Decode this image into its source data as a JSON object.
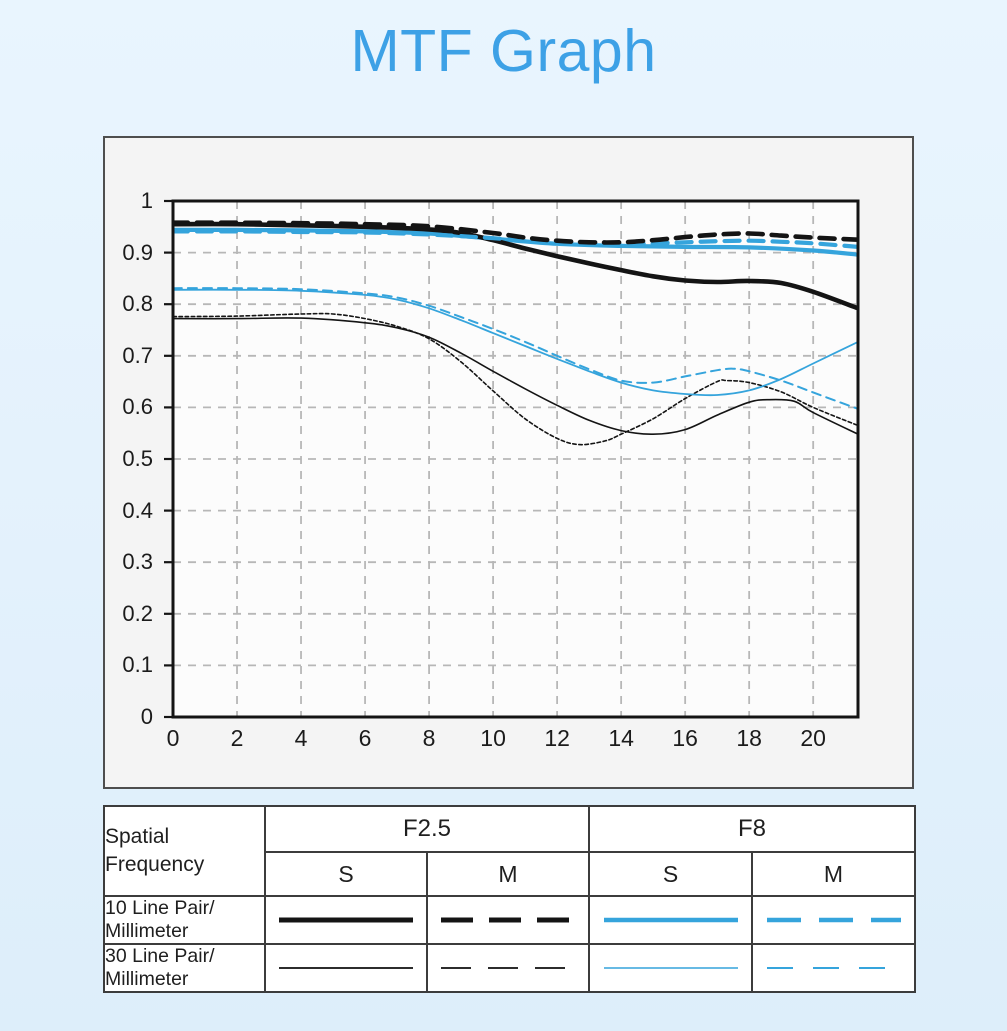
{
  "title": "MTF Graph",
  "colors": {
    "title_blue": "#3da1e6",
    "curve_blue": "#35a4dc",
    "curve_black": "#141414",
    "background": "#e3f1fc",
    "panel_bg": "#f4f4f4",
    "plot_bg": "#fcfcfc",
    "grid_gray": "#b7b7b7",
    "border_dark": "#3c3c3c"
  },
  "chart_data": {
    "type": "line",
    "title": "MTF Graph",
    "xlabel": "",
    "ylabel": "",
    "xlim": [
      0,
      21.4
    ],
    "ylim": [
      0,
      1
    ],
    "grid": "dashed",
    "x_ticks": [
      0,
      2,
      4,
      6,
      8,
      10,
      12,
      14,
      16,
      18,
      20
    ],
    "x_tick_labels": [
      "0",
      "2",
      "4",
      "6",
      "8",
      "10",
      "12",
      "14",
      "16",
      "18",
      "20"
    ],
    "y_ticks": [
      0,
      0.1,
      0.2,
      0.3,
      0.4,
      0.5,
      0.6,
      0.7,
      0.8,
      0.9,
      1
    ],
    "y_tick_labels": [
      "0",
      "0.1",
      "0.2",
      "0.3",
      "0.4",
      "0.5",
      "0.6",
      "0.7",
      "0.8",
      "0.9",
      "1"
    ],
    "series": [
      {
        "id": "f2.5-s-30lp",
        "name": "F2.5 S 30 Line Pair/Millimeter",
        "color": "#141414",
        "width": 1.6,
        "dash": null,
        "x": [
          0,
          2,
          4,
          6,
          7,
          8,
          9,
          10,
          11,
          12,
          13,
          14,
          15,
          16,
          17,
          18,
          18.6,
          19.4,
          20,
          21.4
        ],
        "y": [
          0.772,
          0.772,
          0.773,
          0.764,
          0.754,
          0.736,
          0.705,
          0.67,
          0.636,
          0.604,
          0.575,
          0.555,
          0.548,
          0.557,
          0.585,
          0.61,
          0.615,
          0.612,
          0.59,
          0.548
        ]
      },
      {
        "id": "f2.5-m-30lp",
        "name": "F2.5 M 30 Line Pair/Millimeter",
        "color": "#141414",
        "width": 1.6,
        "dash": "3.5 2.6",
        "x": [
          0,
          2,
          4,
          5,
          6,
          7,
          8,
          9,
          10,
          11,
          12,
          12.7,
          13.5,
          14,
          15,
          16,
          17,
          17.3,
          18,
          19,
          20,
          21.4
        ],
        "y": [
          0.776,
          0.777,
          0.781,
          0.781,
          0.772,
          0.757,
          0.733,
          0.688,
          0.632,
          0.578,
          0.54,
          0.528,
          0.535,
          0.548,
          0.578,
          0.617,
          0.65,
          0.652,
          0.648,
          0.63,
          0.6,
          0.565
        ]
      },
      {
        "id": "f8-s-30lp",
        "name": "F8 S 30 Line Pair/Millimeter",
        "color": "#35a4dc",
        "width": 1.8,
        "dash": null,
        "x": [
          0,
          2,
          4,
          6,
          7,
          8,
          9,
          10,
          11,
          12,
          13,
          14,
          15,
          16,
          17,
          18,
          19,
          20,
          21.4
        ],
        "y": [
          0.828,
          0.828,
          0.826,
          0.818,
          0.809,
          0.792,
          0.769,
          0.744,
          0.719,
          0.694,
          0.67,
          0.648,
          0.633,
          0.626,
          0.624,
          0.633,
          0.655,
          0.685,
          0.727
        ]
      },
      {
        "id": "f8-m-30lp",
        "name": "F8 M 30 Line Pair/Millimeter",
        "color": "#35a4dc",
        "width": 2,
        "dash": "9 6",
        "x": [
          0,
          2,
          4,
          6,
          7,
          8,
          9,
          10,
          11,
          12,
          13,
          14,
          15,
          16,
          17,
          17.5,
          18,
          19,
          20,
          21.4
        ],
        "y": [
          0.831,
          0.831,
          0.829,
          0.821,
          0.813,
          0.797,
          0.775,
          0.752,
          0.727,
          0.7,
          0.674,
          0.652,
          0.648,
          0.66,
          0.672,
          0.675,
          0.67,
          0.652,
          0.629,
          0.597
        ]
      },
      {
        "id": "f8-s-10lp",
        "name": "F8 S 10 Line Pair/Millimeter",
        "color": "#35a4dc",
        "width": 4.2,
        "dash": null,
        "x": [
          0,
          2,
          4,
          6,
          8,
          10,
          12,
          14,
          16,
          18,
          20,
          21.4
        ],
        "y": [
          0.944,
          0.944,
          0.943,
          0.941,
          0.937,
          0.927,
          0.917,
          0.913,
          0.911,
          0.91,
          0.904,
          0.896
        ]
      },
      {
        "id": "f2.5-s-10lp",
        "name": "F2.5 S 10 Line Pair/Millimeter",
        "color": "#141414",
        "width": 4.6,
        "dash": null,
        "x": [
          0,
          2,
          4,
          6,
          8,
          9,
          10,
          11,
          12,
          13,
          14,
          15,
          16,
          17,
          18,
          19,
          20,
          21.4
        ],
        "y": [
          0.955,
          0.955,
          0.953,
          0.95,
          0.945,
          0.938,
          0.924,
          0.908,
          0.893,
          0.879,
          0.866,
          0.854,
          0.846,
          0.843,
          0.845,
          0.841,
          0.824,
          0.792
        ]
      },
      {
        "id": "f8-m-10lp",
        "name": "F8 M 10 Line Pair/Millimeter",
        "color": "#35a4dc",
        "width": 4.2,
        "dash": "15 9",
        "x": [
          0,
          2,
          4,
          6,
          8,
          10,
          12,
          13,
          14,
          15,
          16,
          17,
          18,
          19,
          20,
          21.4
        ],
        "y": [
          0.941,
          0.941,
          0.94,
          0.939,
          0.935,
          0.928,
          0.918,
          0.916,
          0.916,
          0.918,
          0.92,
          0.922,
          0.923,
          0.921,
          0.918,
          0.911
        ]
      },
      {
        "id": "f2.5-m-10lp",
        "name": "F2.5 M 10 Line Pair/Millimeter",
        "color": "#141414",
        "width": 4.6,
        "dash": "15 9",
        "x": [
          0,
          2,
          4,
          6,
          8,
          10,
          11,
          12,
          13,
          14,
          15,
          16,
          17,
          18,
          19,
          20,
          21.4
        ],
        "y": [
          0.958,
          0.958,
          0.957,
          0.955,
          0.951,
          0.938,
          0.929,
          0.923,
          0.92,
          0.92,
          0.924,
          0.93,
          0.935,
          0.937,
          0.933,
          0.929,
          0.925
        ]
      }
    ]
  },
  "legend_table": {
    "corner_label": "Spatial Frequency",
    "groups": [
      {
        "label": "F2.5"
      },
      {
        "label": "F8"
      }
    ],
    "sub_headers": [
      "S",
      "M",
      "S",
      "M"
    ],
    "rows": [
      {
        "label_line1": "10 Line Pair/",
        "label_line2": "Millimeter",
        "samples": [
          {
            "style": "solid",
            "color": "#141414",
            "width": 5,
            "dash": null
          },
          {
            "style": "dashed",
            "color": "#141414",
            "width": 5,
            "dash": "32 16"
          },
          {
            "style": "solid",
            "color": "#35a4dc",
            "width": 4.5,
            "dash": null
          },
          {
            "style": "dashed",
            "color": "#35a4dc",
            "width": 4.5,
            "dash": "34 18"
          }
        ]
      },
      {
        "label_line1": "30 Line Pair/",
        "label_line2": "Millimeter",
        "samples": [
          {
            "style": "solid",
            "color": "#2c2c2c",
            "width": 2,
            "dash": null
          },
          {
            "style": "dashed",
            "color": "#2c2c2c",
            "width": 2,
            "dash": "30 17"
          },
          {
            "style": "solid",
            "color": "#35a4dc",
            "width": 1.6,
            "dash": null
          },
          {
            "style": "dashed",
            "color": "#35a4dc",
            "width": 2,
            "dash": "26 20"
          }
        ]
      }
    ]
  }
}
